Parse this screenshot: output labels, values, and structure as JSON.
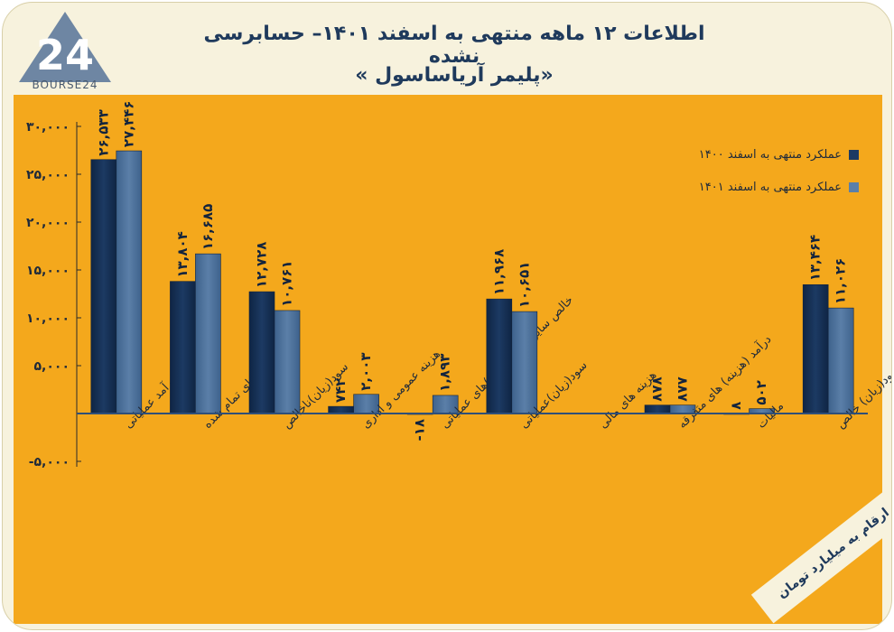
{
  "header": {
    "title": "اطلاعات ۱۲ ماهه منتهی به اسفند ۱۴۰۱– حسابرسی نشده",
    "subtitle": "«پلیمر آریاساسول »"
  },
  "logo": {
    "text": "BOURSE24",
    "mark": "24"
  },
  "units_note": "ارقام به میلیارد تومان",
  "colors": {
    "series1": "#1c3a63",
    "series2": "#5b7fa8",
    "plot_bg": "#f4a81c",
    "frame": "#f7f2dd"
  },
  "chart_data": {
    "type": "bar",
    "categories": [
      "درآمد عملیاتی",
      "بهای تمام شده",
      "سود(زیان)ناخالص",
      "هزینه عمومی و اداری",
      "خالص سایر درآمد(هزینه)های عملیاتی",
      "سود(زیان)عملیاتی",
      "هزینه های مالی",
      "درآمد (هزینه) های متفرقه",
      "مالیات",
      "سود(زیان) خالص"
    ],
    "series": [
      {
        "name": "عملکرد منتهی به اسفند ۱۴۰۰",
        "values": [
          26533,
          13804,
          12728,
          742,
          -18,
          11968,
          0,
          878,
          8,
          13464
        ],
        "labels": [
          "۲۶,۵۳۳",
          "۱۳,۸۰۴",
          "۱۲,۷۲۸",
          "۷۴۲",
          "-۱۸",
          "۱۱,۹۶۸",
          "",
          "۸۷۸",
          "۸",
          "۱۳,۴۶۴"
        ]
      },
      {
        "name": "عملکرد منتهی به اسفند ۱۴۰۱",
        "values": [
          27446,
          16685,
          10761,
          2003,
          1893,
          10651,
          0,
          877,
          502,
          11026
        ],
        "labels": [
          "۲۷,۴۴۶",
          "۱۶,۶۸۵",
          "۱۰,۷۶۱",
          "۲,۰۰۳",
          "۱,۸۹۳",
          "۱۰,۶۵۱",
          "",
          "۸۷۷",
          "۵۰۲",
          "۱۱,۰۲۶"
        ]
      }
    ],
    "yticks": [
      30000,
      25000,
      20000,
      15000,
      10000,
      5000,
      0,
      -5000
    ],
    "ytick_labels": [
      "۳۰,۰۰۰",
      "۲۵,۰۰۰",
      "۲۰,۰۰۰",
      "۱۵,۰۰۰",
      "۱۰,۰۰۰",
      "۵,۰۰۰",
      "",
      "-۵,۰۰۰"
    ],
    "ylim": [
      -5000,
      30000
    ],
    "grid": false,
    "legend_position": "top-right"
  }
}
